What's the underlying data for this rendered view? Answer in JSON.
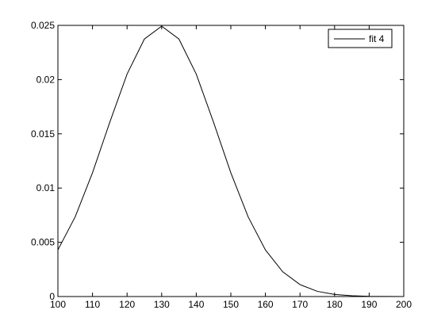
{
  "chart_data": {
    "type": "line",
    "x": [
      100,
      105,
      110,
      115,
      120,
      125,
      130,
      135,
      140,
      145,
      150,
      155,
      160,
      165,
      170,
      175,
      180,
      185,
      190,
      195,
      200
    ],
    "series": [
      {
        "name": "fit 4",
        "color": "#000000",
        "values": [
          0.0043,
          0.00735,
          0.01141,
          0.01607,
          0.02051,
          0.02374,
          0.02493,
          0.02374,
          0.02051,
          0.01607,
          0.01141,
          0.00735,
          0.0043,
          0.00228,
          0.0011,
          0.00048,
          0.00019,
          7e-05,
          2e-05,
          1e-05,
          0
        ]
      }
    ],
    "xlim": [
      100,
      200
    ],
    "xticks": [
      100,
      110,
      120,
      130,
      140,
      150,
      160,
      170,
      180,
      190,
      200
    ],
    "ylim": [
      0,
      0.025
    ],
    "yticks": [
      0,
      0.005,
      0.01,
      0.015,
      0.02,
      0.025
    ],
    "grid": false,
    "legend": "northeast"
  }
}
